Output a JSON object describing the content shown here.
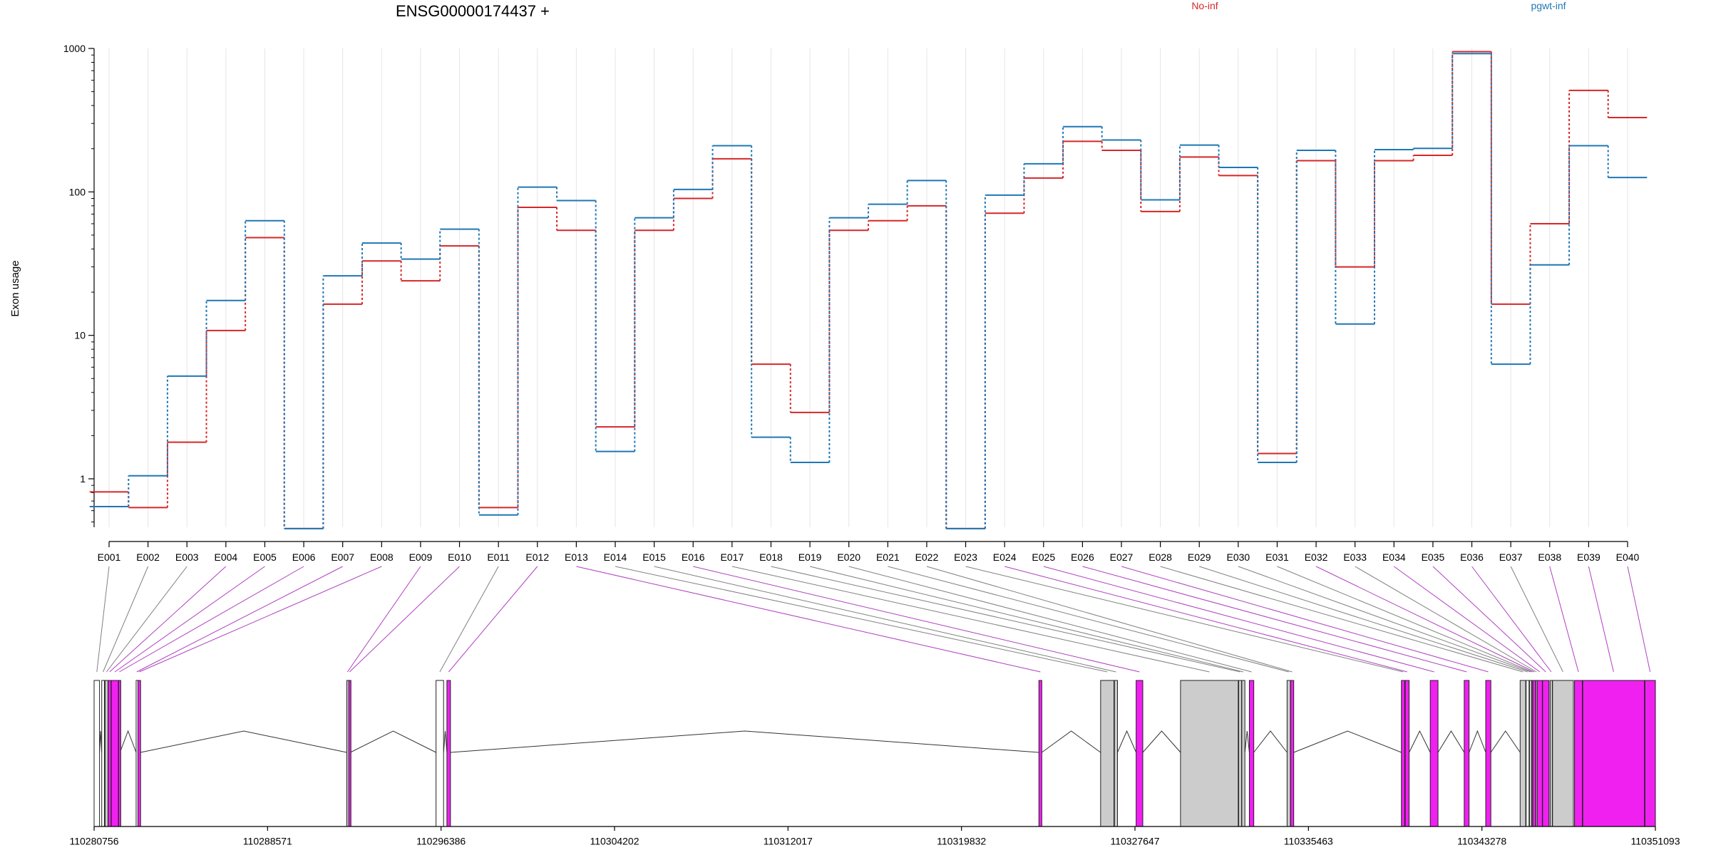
{
  "chart_data": {
    "type": "line",
    "title": "ENSG00000174437 +",
    "ylabel": "Exon usage",
    "yscale": "log",
    "ylim": [
      0.43,
      1000
    ],
    "yticks": [
      1,
      10,
      100,
      1000
    ],
    "ytick_labels": [
      "1",
      "10",
      "100",
      "1000"
    ],
    "grid": "vertical",
    "legend_placement": "top-right",
    "categories": [
      "E001",
      "E002",
      "E003",
      "E004",
      "E005",
      "E006",
      "E007",
      "E008",
      "E009",
      "E010",
      "E011",
      "E012",
      "E013",
      "E014",
      "E015",
      "E016",
      "E017",
      "E018",
      "E019",
      "E020",
      "E021",
      "E022",
      "E023",
      "E024",
      "E025",
      "E026",
      "E027",
      "E028",
      "E029",
      "E030",
      "E031",
      "E032",
      "E033",
      "E034",
      "E035",
      "E036",
      "E037",
      "E038",
      "E039",
      "E040"
    ],
    "series": [
      {
        "name": "No-inf",
        "color": "#d62728",
        "values": [
          0.81,
          0.63,
          1.8,
          10.8,
          48,
          0.45,
          16.5,
          33,
          24,
          42,
          0.63,
          78,
          54,
          2.3,
          54,
          90,
          170,
          6.3,
          2.9,
          54,
          63,
          80,
          0.45,
          71,
          125,
          225,
          195,
          73,
          175,
          130,
          1.5,
          165,
          30,
          165,
          180,
          950,
          16.5,
          60,
          510,
          330
        ]
      },
      {
        "name": "pgwt-inf",
        "color": "#1f77b4",
        "values": [
          0.64,
          1.05,
          5.2,
          17.5,
          63,
          0.45,
          26,
          44,
          34,
          55,
          0.56,
          108,
          87,
          1.55,
          66,
          104,
          210,
          1.95,
          1.3,
          66,
          82,
          120,
          0.45,
          95,
          157,
          285,
          230,
          88,
          212,
          148,
          1.3,
          195,
          12,
          197,
          201,
          920,
          6.3,
          31,
          210,
          126
        ]
      }
    ],
    "gene_axis_ticks": [
      "110280756",
      "110288571",
      "110296386",
      "110304202",
      "110312017",
      "110319832",
      "110327647",
      "110335463",
      "110343278",
      "110351093"
    ]
  },
  "gene_model": {
    "exons": [
      {
        "id": "E001",
        "start": 110280756,
        "end": 110281000,
        "fill": "#ffffff"
      },
      {
        "id": "E002",
        "start": 110281100,
        "end": 110281220,
        "fill": "#ffffff"
      },
      {
        "id": "E003",
        "start": 110281250,
        "end": 110281380,
        "fill": "#cccccc"
      },
      {
        "id": "E004",
        "start": 110281390,
        "end": 110281520,
        "fill": "#f020f0"
      },
      {
        "id": "E005",
        "start": 110281530,
        "end": 110281850,
        "fill": "#f020f0"
      },
      {
        "id": "E006",
        "start": 110281860,
        "end": 110281920,
        "fill": "#f020f0"
      },
      {
        "id": "E007",
        "start": 110282650,
        "end": 110282700,
        "fill": "#ffffff"
      },
      {
        "id": "E008",
        "start": 110282730,
        "end": 110282850,
        "fill": "#f020f0"
      },
      {
        "id": "E009",
        "start": 110292140,
        "end": 110292200,
        "fill": "#cccccc"
      },
      {
        "id": "E010",
        "start": 110292230,
        "end": 110292300,
        "fill": "#f020f0"
      },
      {
        "id": "E011",
        "start": 110296160,
        "end": 110296500,
        "fill": "#ffffff"
      },
      {
        "id": "E012",
        "start": 110296650,
        "end": 110296810,
        "fill": "#f020f0"
      },
      {
        "id": "E013",
        "start": 110323320,
        "end": 110323450,
        "fill": "#f020f0"
      },
      {
        "id": "E014",
        "start": 110326100,
        "end": 110326700,
        "fill": "#cccccc"
      },
      {
        "id": "E015",
        "start": 110326720,
        "end": 110326860,
        "fill": "#cccccc"
      },
      {
        "id": "E016",
        "start": 110327700,
        "end": 110328000,
        "fill": "#f020f0"
      },
      {
        "id": "E017",
        "start": 110329700,
        "end": 110332300,
        "fill": "#cccccc"
      },
      {
        "id": "E018",
        "start": 110332320,
        "end": 110332450,
        "fill": "#cccccc"
      },
      {
        "id": "E019",
        "start": 110332460,
        "end": 110332600,
        "fill": "#cccccc"
      },
      {
        "id": "E020",
        "start": 110332800,
        "end": 110333000,
        "fill": "#f020f0"
      },
      {
        "id": "E021",
        "start": 110334500,
        "end": 110334650,
        "fill": "#cccccc"
      },
      {
        "id": "E022",
        "start": 110334660,
        "end": 110334800,
        "fill": "#f020f0"
      },
      {
        "id": "E023",
        "start": 110339650,
        "end": 110339800,
        "fill": "#f020f0"
      },
      {
        "id": "E024",
        "start": 110339820,
        "end": 110340000,
        "fill": "#f020f0"
      },
      {
        "id": "E025",
        "start": 110340950,
        "end": 110341300,
        "fill": "#f020f0"
      },
      {
        "id": "E026",
        "start": 110342480,
        "end": 110342700,
        "fill": "#f020f0"
      },
      {
        "id": "E027",
        "start": 110343450,
        "end": 110343680,
        "fill": "#f020f0"
      },
      {
        "id": "E028",
        "start": 110345000,
        "end": 110345250,
        "fill": "#cccccc"
      },
      {
        "id": "E029",
        "start": 110345270,
        "end": 110345400,
        "fill": "#ffffff"
      },
      {
        "id": "E030",
        "start": 110345420,
        "end": 110345520,
        "fill": "#cccccc"
      },
      {
        "id": "E031",
        "start": 110345530,
        "end": 110345560,
        "fill": "#cccccc"
      },
      {
        "id": "E032",
        "start": 110345570,
        "end": 110345700,
        "fill": "#f020f0"
      },
      {
        "id": "E033",
        "start": 110345710,
        "end": 110345760,
        "fill": "#cccccc"
      },
      {
        "id": "E034",
        "start": 110345770,
        "end": 110346000,
        "fill": "#f020f0"
      },
      {
        "id": "E035",
        "start": 110346010,
        "end": 110346300,
        "fill": "#f020f0"
      },
      {
        "id": "E036",
        "start": 110346350,
        "end": 110346450,
        "fill": "#cccccc"
      },
      {
        "id": "E037",
        "start": 110346460,
        "end": 110347400,
        "fill": "#cccccc"
      },
      {
        "id": "E038",
        "start": 110347450,
        "end": 110347800,
        "fill": "#f020f0"
      },
      {
        "id": "E039",
        "start": 110347820,
        "end": 110350600,
        "fill": "#f020f0"
      },
      {
        "id": "E040",
        "start": 110350620,
        "end": 110351093,
        "fill": "#f020f0"
      }
    ],
    "connector_colors": {
      "significant": "#b040c0",
      "normal": "#808080"
    },
    "significant_exons": [
      "E004",
      "E005",
      "E006",
      "E007",
      "E008",
      "E009",
      "E010",
      "E012",
      "E013",
      "E016",
      "E024",
      "E025",
      "E026",
      "E027",
      "E032",
      "E034",
      "E035",
      "E036",
      "E038",
      "E039",
      "E040"
    ]
  }
}
